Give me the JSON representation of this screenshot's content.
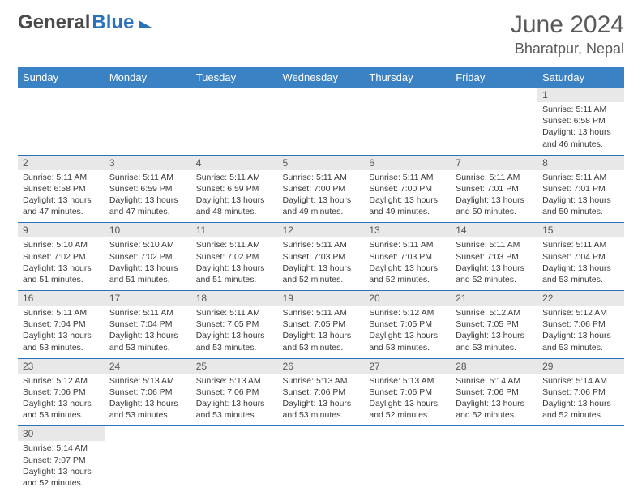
{
  "logo": {
    "part1": "General",
    "part2": "Blue"
  },
  "title": "June 2024",
  "location": "Bharatpur, Nepal",
  "colors": {
    "header_bg": "#3b82c4",
    "header_text": "#ffffff",
    "daynum_bg": "#e8e8e8",
    "cell_border": "#2b73b8",
    "text": "#3a3a3a",
    "title_text": "#5a5a5a",
    "logo_gray": "#4a4a4a",
    "logo_blue": "#2b73b8"
  },
  "typography": {
    "title_fontsize": 30,
    "location_fontsize": 18,
    "dow_fontsize": 13,
    "daynum_fontsize": 12,
    "cell_fontsize": 10.5
  },
  "days_of_week": [
    "Sunday",
    "Monday",
    "Tuesday",
    "Wednesday",
    "Thursday",
    "Friday",
    "Saturday"
  ],
  "weeks": [
    [
      null,
      null,
      null,
      null,
      null,
      null,
      {
        "n": "1",
        "sr": "5:11 AM",
        "ss": "6:58 PM",
        "dl": "13 hours and 46 minutes."
      }
    ],
    [
      {
        "n": "2",
        "sr": "5:11 AM",
        "ss": "6:58 PM",
        "dl": "13 hours and 47 minutes."
      },
      {
        "n": "3",
        "sr": "5:11 AM",
        "ss": "6:59 PM",
        "dl": "13 hours and 47 minutes."
      },
      {
        "n": "4",
        "sr": "5:11 AM",
        "ss": "6:59 PM",
        "dl": "13 hours and 48 minutes."
      },
      {
        "n": "5",
        "sr": "5:11 AM",
        "ss": "7:00 PM",
        "dl": "13 hours and 49 minutes."
      },
      {
        "n": "6",
        "sr": "5:11 AM",
        "ss": "7:00 PM",
        "dl": "13 hours and 49 minutes."
      },
      {
        "n": "7",
        "sr": "5:11 AM",
        "ss": "7:01 PM",
        "dl": "13 hours and 50 minutes."
      },
      {
        "n": "8",
        "sr": "5:11 AM",
        "ss": "7:01 PM",
        "dl": "13 hours and 50 minutes."
      }
    ],
    [
      {
        "n": "9",
        "sr": "5:10 AM",
        "ss": "7:02 PM",
        "dl": "13 hours and 51 minutes."
      },
      {
        "n": "10",
        "sr": "5:10 AM",
        "ss": "7:02 PM",
        "dl": "13 hours and 51 minutes."
      },
      {
        "n": "11",
        "sr": "5:11 AM",
        "ss": "7:02 PM",
        "dl": "13 hours and 51 minutes."
      },
      {
        "n": "12",
        "sr": "5:11 AM",
        "ss": "7:03 PM",
        "dl": "13 hours and 52 minutes."
      },
      {
        "n": "13",
        "sr": "5:11 AM",
        "ss": "7:03 PM",
        "dl": "13 hours and 52 minutes."
      },
      {
        "n": "14",
        "sr": "5:11 AM",
        "ss": "7:03 PM",
        "dl": "13 hours and 52 minutes."
      },
      {
        "n": "15",
        "sr": "5:11 AM",
        "ss": "7:04 PM",
        "dl": "13 hours and 53 minutes."
      }
    ],
    [
      {
        "n": "16",
        "sr": "5:11 AM",
        "ss": "7:04 PM",
        "dl": "13 hours and 53 minutes."
      },
      {
        "n": "17",
        "sr": "5:11 AM",
        "ss": "7:04 PM",
        "dl": "13 hours and 53 minutes."
      },
      {
        "n": "18",
        "sr": "5:11 AM",
        "ss": "7:05 PM",
        "dl": "13 hours and 53 minutes."
      },
      {
        "n": "19",
        "sr": "5:11 AM",
        "ss": "7:05 PM",
        "dl": "13 hours and 53 minutes."
      },
      {
        "n": "20",
        "sr": "5:12 AM",
        "ss": "7:05 PM",
        "dl": "13 hours and 53 minutes."
      },
      {
        "n": "21",
        "sr": "5:12 AM",
        "ss": "7:05 PM",
        "dl": "13 hours and 53 minutes."
      },
      {
        "n": "22",
        "sr": "5:12 AM",
        "ss": "7:06 PM",
        "dl": "13 hours and 53 minutes."
      }
    ],
    [
      {
        "n": "23",
        "sr": "5:12 AM",
        "ss": "7:06 PM",
        "dl": "13 hours and 53 minutes."
      },
      {
        "n": "24",
        "sr": "5:13 AM",
        "ss": "7:06 PM",
        "dl": "13 hours and 53 minutes."
      },
      {
        "n": "25",
        "sr": "5:13 AM",
        "ss": "7:06 PM",
        "dl": "13 hours and 53 minutes."
      },
      {
        "n": "26",
        "sr": "5:13 AM",
        "ss": "7:06 PM",
        "dl": "13 hours and 53 minutes."
      },
      {
        "n": "27",
        "sr": "5:13 AM",
        "ss": "7:06 PM",
        "dl": "13 hours and 52 minutes."
      },
      {
        "n": "28",
        "sr": "5:14 AM",
        "ss": "7:06 PM",
        "dl": "13 hours and 52 minutes."
      },
      {
        "n": "29",
        "sr": "5:14 AM",
        "ss": "7:06 PM",
        "dl": "13 hours and 52 minutes."
      }
    ],
    [
      {
        "n": "30",
        "sr": "5:14 AM",
        "ss": "7:07 PM",
        "dl": "13 hours and 52 minutes."
      },
      null,
      null,
      null,
      null,
      null,
      null
    ]
  ],
  "labels": {
    "sunrise": "Sunrise:",
    "sunset": "Sunset:",
    "daylight": "Daylight:"
  }
}
